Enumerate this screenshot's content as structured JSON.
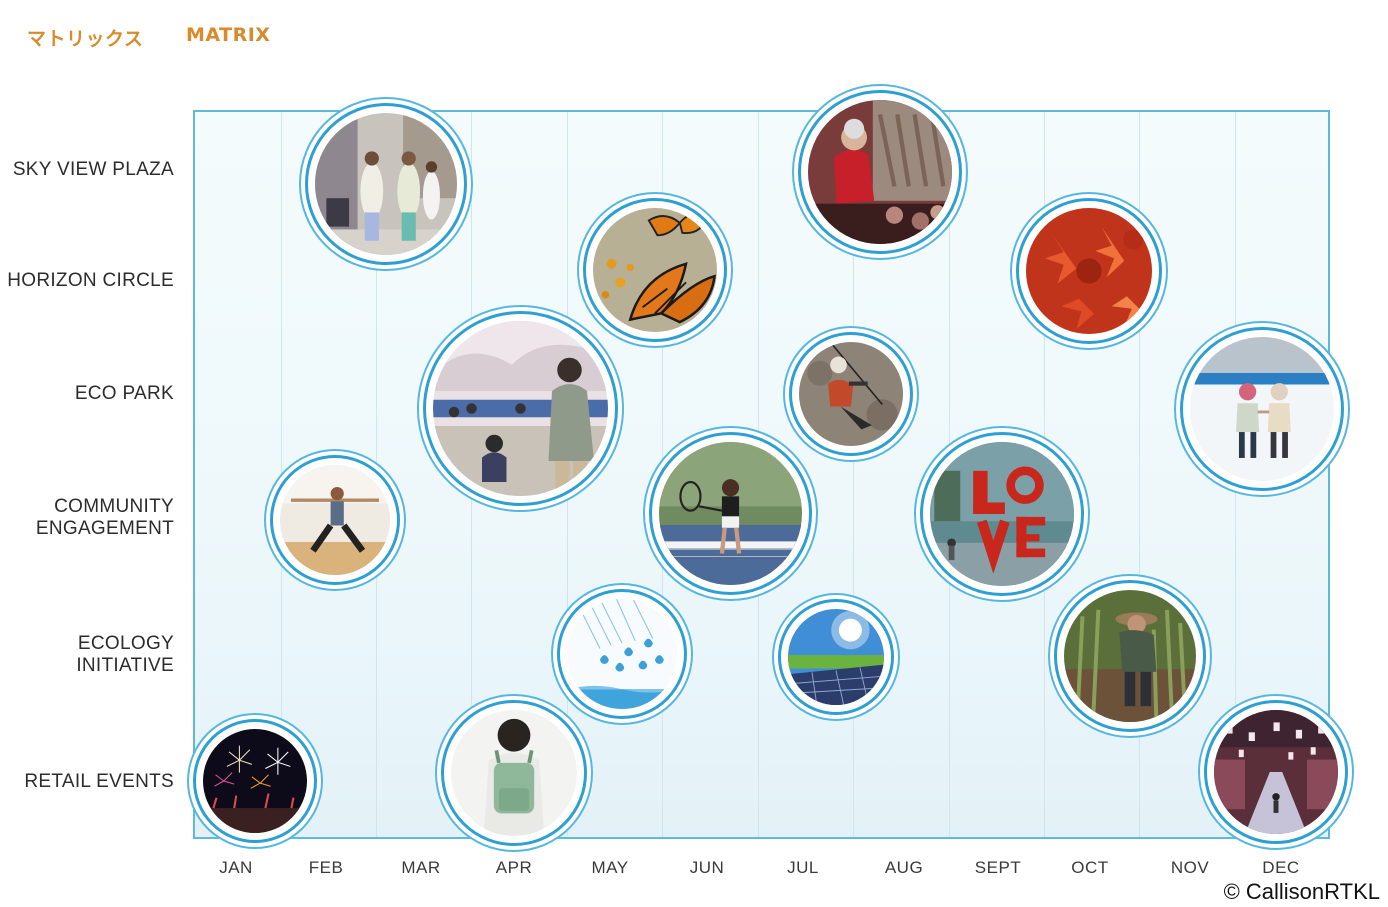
{
  "header": {
    "title_jp": "マトリックス",
    "title_en": "MATRIX"
  },
  "rows": [
    "SKY VIEW PLAZA",
    "HORIZON CIRCLE",
    "ECO PARK",
    "COMMUNITY\nENGAGEMENT",
    "ECOLOGY\nINITIATIVE",
    "RETAIL EVENTS"
  ],
  "months": [
    "JAN",
    "FEB",
    "MAR",
    "APR",
    "MAY",
    "JUN",
    "JUL",
    "AUG",
    "SEPT",
    "OCT",
    "NOV",
    "DEC"
  ],
  "events": [
    {
      "name": "fashion-street-photo",
      "row": "SKY VIEW PLAZA",
      "month": "FEB"
    },
    {
      "name": "concert-photo",
      "row": "SKY VIEW PLAZA",
      "month": "JUL"
    },
    {
      "name": "butterflies-photo",
      "row": "HORIZON CIRCLE",
      "month": "MAY"
    },
    {
      "name": "autumn-leaves-photo",
      "row": "HORIZON CIRCLE",
      "month": "OCT"
    },
    {
      "name": "cherry-blossom-picnic-photo",
      "row": "ECO PARK",
      "month": "APR"
    },
    {
      "name": "zipline-photo",
      "row": "ECO PARK",
      "month": "JUL"
    },
    {
      "name": "ice-skating-photo",
      "row": "ECO PARK",
      "month": "DEC"
    },
    {
      "name": "yoga-photo",
      "row": "COMMUNITY ENGAGEMENT",
      "month": "FEB"
    },
    {
      "name": "tennis-photo",
      "row": "COMMUNITY ENGAGEMENT",
      "month": "JUN"
    },
    {
      "name": "love-sculpture-photo",
      "row": "COMMUNITY ENGAGEMENT",
      "month": "SEPT"
    },
    {
      "name": "rain-drops-photo",
      "row": "ECOLOGY INITIATIVE",
      "month": "MAY"
    },
    {
      "name": "solar-panel-photo",
      "row": "ECOLOGY INITIATIVE",
      "month": "JUL"
    },
    {
      "name": "gardening-photo",
      "row": "ECOLOGY INITIATIVE",
      "month": "OCT"
    },
    {
      "name": "fireworks-photo",
      "row": "RETAIL EVENTS",
      "month": "JAN"
    },
    {
      "name": "student-backpack-photo",
      "row": "RETAIL EVENTS",
      "month": "APR"
    },
    {
      "name": "lantern-market-photo",
      "row": "RETAIL EVENTS",
      "month": "DEC"
    }
  ],
  "colors": {
    "title": "#d98a2b",
    "grid_border": "#5fbad9",
    "bubble_ring": "#2d9fd2"
  },
  "footer": {
    "copyright": "© CallisonRTKL"
  }
}
